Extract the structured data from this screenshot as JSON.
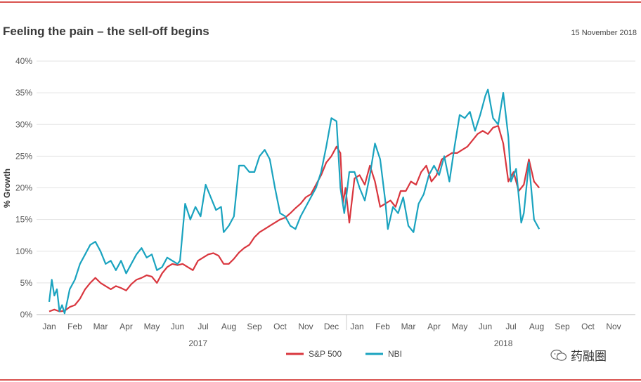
{
  "header": {
    "title": "Feeling the pain – the sell-off begins",
    "date": "15 November 2018"
  },
  "watermark": {
    "text": "药融圈"
  },
  "colors": {
    "sp500": "#d9363e",
    "nbi": "#1aa3bf",
    "grid": "#e3e3e3",
    "rule": "#d9534f"
  },
  "chart_data": {
    "type": "line",
    "ylabel": "% Growth",
    "ylim": [
      0,
      40
    ],
    "yticks": [
      "0%",
      "5%",
      "10%",
      "15%",
      "20%",
      "25%",
      "30%",
      "35%",
      "40%"
    ],
    "months": [
      "Jan",
      "Feb",
      "Mar",
      "Apr",
      "May",
      "Jun",
      "Jul",
      "Aug",
      "Sep",
      "Oct",
      "Nov",
      "Dec",
      "Jan",
      "Feb",
      "Mar",
      "Apr",
      "May",
      "Jun",
      "Jul",
      "Aug",
      "Sep",
      "Oct",
      "Nov"
    ],
    "years": [
      "2017",
      "2018"
    ],
    "legend": [
      "S&P 500",
      "NBI"
    ],
    "grid": true,
    "series": [
      {
        "name": "S&P 500",
        "points": [
          [
            0,
            0.5
          ],
          [
            0.2,
            0.8
          ],
          [
            0.4,
            0.5
          ],
          [
            0.6,
            0.6
          ],
          [
            0.8,
            1.2
          ],
          [
            1.0,
            1.5
          ],
          [
            1.2,
            2.5
          ],
          [
            1.4,
            4.0
          ],
          [
            1.6,
            5.0
          ],
          [
            1.8,
            5.8
          ],
          [
            2.0,
            5.0
          ],
          [
            2.2,
            4.5
          ],
          [
            2.4,
            4.0
          ],
          [
            2.6,
            4.5
          ],
          [
            2.8,
            4.2
          ],
          [
            3.0,
            3.8
          ],
          [
            3.2,
            4.8
          ],
          [
            3.4,
            5.5
          ],
          [
            3.6,
            5.8
          ],
          [
            3.8,
            6.2
          ],
          [
            4.0,
            6.0
          ],
          [
            4.2,
            5.0
          ],
          [
            4.4,
            6.5
          ],
          [
            4.6,
            7.5
          ],
          [
            4.8,
            8.0
          ],
          [
            5.0,
            7.8
          ],
          [
            5.2,
            8.0
          ],
          [
            5.4,
            7.5
          ],
          [
            5.6,
            7.0
          ],
          [
            5.8,
            8.5
          ],
          [
            6.0,
            9.0
          ],
          [
            6.2,
            9.5
          ],
          [
            6.4,
            9.7
          ],
          [
            6.6,
            9.3
          ],
          [
            6.8,
            8.0
          ],
          [
            7.0,
            8.0
          ],
          [
            7.2,
            8.8
          ],
          [
            7.4,
            9.8
          ],
          [
            7.6,
            10.5
          ],
          [
            7.8,
            11.0
          ],
          [
            8.0,
            12.2
          ],
          [
            8.2,
            13.0
          ],
          [
            8.4,
            13.5
          ],
          [
            8.6,
            14.0
          ],
          [
            8.8,
            14.5
          ],
          [
            9.0,
            15.0
          ],
          [
            9.2,
            15.3
          ],
          [
            9.4,
            16.0
          ],
          [
            9.6,
            16.8
          ],
          [
            9.8,
            17.5
          ],
          [
            10.0,
            18.5
          ],
          [
            10.2,
            19.0
          ],
          [
            10.4,
            20.5
          ],
          [
            10.6,
            22.0
          ],
          [
            10.8,
            24.0
          ],
          [
            11.0,
            25.0
          ],
          [
            11.2,
            26.5
          ],
          [
            11.35,
            25.5
          ],
          [
            11.45,
            17.5
          ],
          [
            11.55,
            20.0
          ],
          [
            11.7,
            14.5
          ],
          [
            11.9,
            21.5
          ],
          [
            12.1,
            22.0
          ],
          [
            12.3,
            20.5
          ],
          [
            12.5,
            23.5
          ],
          [
            12.7,
            21.0
          ],
          [
            12.9,
            17.0
          ],
          [
            13.1,
            17.5
          ],
          [
            13.3,
            18.0
          ],
          [
            13.5,
            17.0
          ],
          [
            13.7,
            19.5
          ],
          [
            13.9,
            19.5
          ],
          [
            14.1,
            21.0
          ],
          [
            14.3,
            20.5
          ],
          [
            14.5,
            22.5
          ],
          [
            14.7,
            23.5
          ],
          [
            14.9,
            21.0
          ],
          [
            15.1,
            22.0
          ],
          [
            15.3,
            24.5
          ],
          [
            15.5,
            25.0
          ],
          [
            15.7,
            25.5
          ],
          [
            15.9,
            25.5
          ],
          [
            16.1,
            26.0
          ],
          [
            16.3,
            26.5
          ],
          [
            16.5,
            27.5
          ],
          [
            16.7,
            28.5
          ],
          [
            16.9,
            29.0
          ],
          [
            17.1,
            28.5
          ],
          [
            17.3,
            29.5
          ],
          [
            17.5,
            29.8
          ],
          [
            17.7,
            27.0
          ],
          [
            17.9,
            21.0
          ],
          [
            18.1,
            22.5
          ],
          [
            18.3,
            19.5
          ],
          [
            18.5,
            20.5
          ],
          [
            18.7,
            24.5
          ],
          [
            18.9,
            21.0
          ],
          [
            19.1,
            20.0
          ]
        ]
      },
      {
        "name": "NBI",
        "points": [
          [
            0,
            2.0
          ],
          [
            0.1,
            5.5
          ],
          [
            0.2,
            3.0
          ],
          [
            0.3,
            4.0
          ],
          [
            0.4,
            0.5
          ],
          [
            0.5,
            1.5
          ],
          [
            0.6,
            0.2
          ],
          [
            0.7,
            2.0
          ],
          [
            0.8,
            4.0
          ],
          [
            1.0,
            5.5
          ],
          [
            1.2,
            8.0
          ],
          [
            1.4,
            9.5
          ],
          [
            1.6,
            11.0
          ],
          [
            1.8,
            11.5
          ],
          [
            2.0,
            10.0
          ],
          [
            2.2,
            8.0
          ],
          [
            2.4,
            8.5
          ],
          [
            2.6,
            7.0
          ],
          [
            2.8,
            8.5
          ],
          [
            3.0,
            6.5
          ],
          [
            3.2,
            8.0
          ],
          [
            3.4,
            9.5
          ],
          [
            3.6,
            10.5
          ],
          [
            3.8,
            9.0
          ],
          [
            4.0,
            9.5
          ],
          [
            4.2,
            7.0
          ],
          [
            4.4,
            7.5
          ],
          [
            4.6,
            9.0
          ],
          [
            4.8,
            8.5
          ],
          [
            5.0,
            8.0
          ],
          [
            5.1,
            8.5
          ],
          [
            5.3,
            17.5
          ],
          [
            5.5,
            15.0
          ],
          [
            5.7,
            17.0
          ],
          [
            5.9,
            15.5
          ],
          [
            6.1,
            20.5
          ],
          [
            6.3,
            18.5
          ],
          [
            6.5,
            16.5
          ],
          [
            6.7,
            17.0
          ],
          [
            6.8,
            13.0
          ],
          [
            7.0,
            14.0
          ],
          [
            7.2,
            15.5
          ],
          [
            7.4,
            23.5
          ],
          [
            7.6,
            23.5
          ],
          [
            7.8,
            22.5
          ],
          [
            8.0,
            22.5
          ],
          [
            8.2,
            25.0
          ],
          [
            8.4,
            26.0
          ],
          [
            8.6,
            24.5
          ],
          [
            8.8,
            20.0
          ],
          [
            9.0,
            16.0
          ],
          [
            9.2,
            15.5
          ],
          [
            9.4,
            14.0
          ],
          [
            9.6,
            13.5
          ],
          [
            9.8,
            15.5
          ],
          [
            10.0,
            17.0
          ],
          [
            10.2,
            18.5
          ],
          [
            10.4,
            20.0
          ],
          [
            10.6,
            22.5
          ],
          [
            10.8,
            26.5
          ],
          [
            11.0,
            31.0
          ],
          [
            11.2,
            30.5
          ],
          [
            11.35,
            20.0
          ],
          [
            11.5,
            16.0
          ],
          [
            11.7,
            22.5
          ],
          [
            11.9,
            22.5
          ],
          [
            12.1,
            20.0
          ],
          [
            12.3,
            18.0
          ],
          [
            12.5,
            22.0
          ],
          [
            12.7,
            27.0
          ],
          [
            12.9,
            24.5
          ],
          [
            13.1,
            18.0
          ],
          [
            13.2,
            13.5
          ],
          [
            13.4,
            17.0
          ],
          [
            13.6,
            16.0
          ],
          [
            13.8,
            18.5
          ],
          [
            14.0,
            14.0
          ],
          [
            14.2,
            13.0
          ],
          [
            14.4,
            17.5
          ],
          [
            14.6,
            19.0
          ],
          [
            14.8,
            22.0
          ],
          [
            15.0,
            23.5
          ],
          [
            15.2,
            22.0
          ],
          [
            15.4,
            25.0
          ],
          [
            15.6,
            21.0
          ],
          [
            15.8,
            26.5
          ],
          [
            16.0,
            31.5
          ],
          [
            16.2,
            31.0
          ],
          [
            16.4,
            32.0
          ],
          [
            16.6,
            29.0
          ],
          [
            16.8,
            31.5
          ],
          [
            17.0,
            34.5
          ],
          [
            17.1,
            35.5
          ],
          [
            17.3,
            31.0
          ],
          [
            17.5,
            30.0
          ],
          [
            17.7,
            35.0
          ],
          [
            17.9,
            28.0
          ],
          [
            18.0,
            21.0
          ],
          [
            18.2,
            23.0
          ],
          [
            18.4,
            14.5
          ],
          [
            18.5,
            16.0
          ],
          [
            18.7,
            24.0
          ],
          [
            18.9,
            15.0
          ],
          [
            19.1,
            13.5
          ]
        ]
      }
    ]
  }
}
